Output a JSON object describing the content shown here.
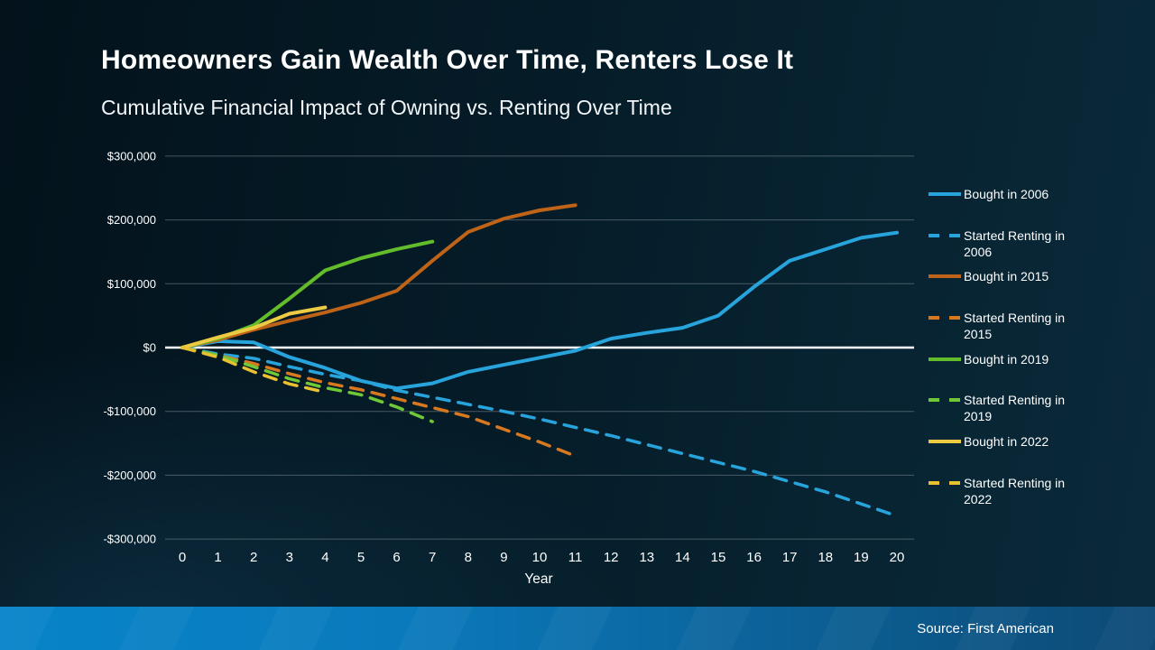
{
  "header": {
    "title": "Homeowners Gain Wealth Over Time, Renters Lose It",
    "subtitle": "Cumulative Financial Impact of Owning vs. Renting Over Time"
  },
  "footer": {
    "source": "Source: First American"
  },
  "chart_data": {
    "type": "line",
    "xlabel": "Year",
    "ylabel": "",
    "x_range": [
      0,
      20
    ],
    "ylim": [
      -300000,
      300000
    ],
    "grid": true,
    "legend_position": "right",
    "zero_line_color": "#ffffff",
    "grid_color": "#8a949c",
    "x_ticks": [
      0,
      1,
      2,
      3,
      4,
      5,
      6,
      7,
      8,
      9,
      10,
      11,
      12,
      13,
      14,
      15,
      16,
      17,
      18,
      19,
      20
    ],
    "y_ticks": [
      {
        "value": 300000,
        "label": "$300,000"
      },
      {
        "value": 200000,
        "label": "$200,000"
      },
      {
        "value": 100000,
        "label": "$100,000"
      },
      {
        "value": 0,
        "label": "$0"
      },
      {
        "value": -100000,
        "label": "-$100,000"
      },
      {
        "value": -200000,
        "label": "-$200,000"
      },
      {
        "value": -300000,
        "label": "-$300,000"
      }
    ],
    "series": [
      {
        "name": "Bought in 2006",
        "color": "#28a4dc",
        "dash": false,
        "years": [
          0,
          1,
          2,
          3,
          4,
          5,
          6,
          7,
          8,
          9,
          10,
          11,
          12,
          13,
          14,
          15,
          16,
          17,
          18,
          19,
          20
        ],
        "values": [
          0,
          10000,
          8000,
          -15000,
          -32000,
          -52000,
          -64000,
          -56000,
          -38000,
          -27000,
          -16000,
          -5000,
          14000,
          23000,
          31000,
          50000,
          95000,
          136000,
          154000,
          172000,
          180000
        ]
      },
      {
        "name": "Started Renting in 2006",
        "color": "#28a4dc",
        "dash": true,
        "years": [
          0,
          1,
          2,
          3,
          4,
          5,
          6,
          7,
          8,
          9,
          10,
          11,
          12,
          13,
          14,
          15,
          16,
          17,
          18,
          19,
          20
        ],
        "values": [
          0,
          -10000,
          -17000,
          -30000,
          -42000,
          -52000,
          -67000,
          -78000,
          -89000,
          -100000,
          -112000,
          -125000,
          -138000,
          -152000,
          -166000,
          -180000,
          -194000,
          -210000,
          -226000,
          -245000,
          -264000
        ]
      },
      {
        "name": "Bought in 2015",
        "color": "#be6318",
        "dash": false,
        "years": [
          0,
          1,
          2,
          3,
          4,
          5,
          6,
          7,
          8,
          9,
          10,
          11
        ],
        "values": [
          0,
          12000,
          28000,
          42000,
          55000,
          70000,
          89000,
          136000,
          181000,
          202000,
          215000,
          223000
        ]
      },
      {
        "name": "Started Renting in 2015",
        "color": "#d8791f",
        "dash": true,
        "years": [
          0,
          1,
          2,
          3,
          4,
          5,
          6,
          7,
          8,
          9,
          10,
          11
        ],
        "values": [
          0,
          -12000,
          -25000,
          -41000,
          -55000,
          -66000,
          -80000,
          -94000,
          -108000,
          -128000,
          -148000,
          -170000
        ]
      },
      {
        "name": "Bought in 2019",
        "color": "#63bd2b",
        "dash": false,
        "years": [
          0,
          1,
          2,
          3,
          4,
          5,
          6,
          7
        ],
        "values": [
          0,
          14000,
          35000,
          77000,
          121000,
          140000,
          154000,
          166000
        ]
      },
      {
        "name": "Started Renting in 2019",
        "color": "#6ec837",
        "dash": true,
        "years": [
          0,
          1,
          2,
          3,
          4,
          5,
          6,
          7
        ],
        "values": [
          0,
          -12000,
          -30000,
          -49000,
          -63000,
          -74000,
          -93000,
          -116000
        ]
      },
      {
        "name": "Bought in 2022",
        "color": "#ecca43",
        "dash": false,
        "years": [
          0,
          1,
          2,
          3,
          4
        ],
        "values": [
          0,
          16000,
          31000,
          53000,
          63000
        ]
      },
      {
        "name": "Started Renting in 2022",
        "color": "#e9c030",
        "dash": true,
        "years": [
          0,
          1,
          2,
          3,
          4
        ],
        "values": [
          0,
          -15000,
          -38000,
          -57000,
          -70000
        ]
      }
    ]
  }
}
